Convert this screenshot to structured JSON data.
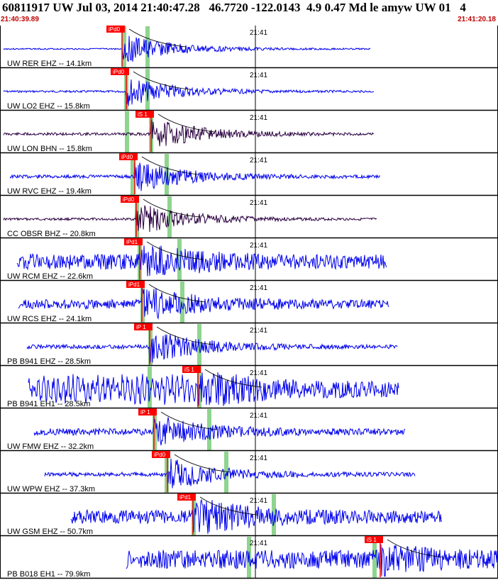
{
  "header": {
    "title": "60811917 UW Jul 03, 2014 21:40:47.28   46.7720 -122.0143  4.9 0.47 Md le amyw UW 01   4",
    "start_time": "21:40:39.89",
    "end_time": "21:41:20.18"
  },
  "chart_data": {
    "type": "line",
    "title": "60811917 UW Jul 03, 2014 21:40:47.28   46.7720 -122.0143  4.9 0.47 Md le amyw UW 01   4",
    "x_range": [
      "21:40:39.89",
      "21:41:20.18"
    ],
    "minute_tick_label": "21:41",
    "colors": {
      "vertical": "#0000ee",
      "horizontal": "#2a0040",
      "pick": "#ff0000",
      "window": "#8fd48f"
    },
    "traces": [
      {
        "label": "UW RER EHZ -- 14.1km",
        "color": "#0000ee",
        "picks": [
          "iPd0"
        ],
        "noise": 0.04,
        "burst": 0.9,
        "seed": 3
      },
      {
        "label": "UW LO2 EHZ -- 15.8km",
        "color": "#0000ee",
        "picks": [
          "iPd0"
        ],
        "noise": 0.06,
        "burst": 0.85,
        "seed": 7
      },
      {
        "label": "UW LON BHN -- 15.8km",
        "color": "#2a0040",
        "picks": [
          "iS 1"
        ],
        "noise": 0.08,
        "burst": 0.9,
        "seed": 11
      },
      {
        "label": "UW RVC EHZ -- 19.4km",
        "color": "#0000ee",
        "picks": [
          "iPd0"
        ],
        "noise": 0.1,
        "burst": 0.9,
        "seed": 13
      },
      {
        "label": "CC OBSR BHZ -- 20.8km",
        "color": "#2a0040",
        "picks": [
          "iPd0"
        ],
        "noise": 0.07,
        "burst": 0.95,
        "seed": 17
      },
      {
        "label": "UW RCM EHZ -- 22.6km",
        "color": "#0000ee",
        "picks": [
          "iPd1"
        ],
        "noise": 0.45,
        "burst": 0.95,
        "seed": 19
      },
      {
        "label": "UW RCS EHZ -- 24.1km",
        "color": "#0000ee",
        "picks": [
          "iPd1"
        ],
        "noise": 0.28,
        "burst": 0.95,
        "seed": 23
      },
      {
        "label": "PB B941 EHZ -- 28.5km",
        "color": "#0000ee",
        "picks": [
          "iP 1"
        ],
        "noise": 0.12,
        "burst": 0.95,
        "seed": 29
      },
      {
        "label": "PB B941 EH1 -- 28.5km",
        "color": "#0000ee",
        "picks": [
          "iS 1"
        ],
        "noise": 0.5,
        "burst": 0.95,
        "seed": 31
      },
      {
        "label": "UW FMW EHZ -- 32.2km",
        "color": "#0000ee",
        "picks": [
          "iP 1"
        ],
        "noise": 0.2,
        "burst": 0.9,
        "seed": 37
      },
      {
        "label": "UW WPW EHZ -- 37.3km",
        "color": "#0000ee",
        "picks": [
          "iPd0"
        ],
        "noise": 0.12,
        "burst": 0.95,
        "seed": 41
      },
      {
        "label": "UW GSM EHZ -- 50.7km",
        "color": "#0000ee",
        "picks": [
          "iPd1"
        ],
        "noise": 0.4,
        "burst": 0.95,
        "seed": 43
      },
      {
        "label": "PB B018 EH1 -- 79.9km",
        "color": "#0000ee",
        "picks": [
          "iS 1"
        ],
        "noise": 0.55,
        "burst": 0.6,
        "seed": 47
      }
    ]
  }
}
